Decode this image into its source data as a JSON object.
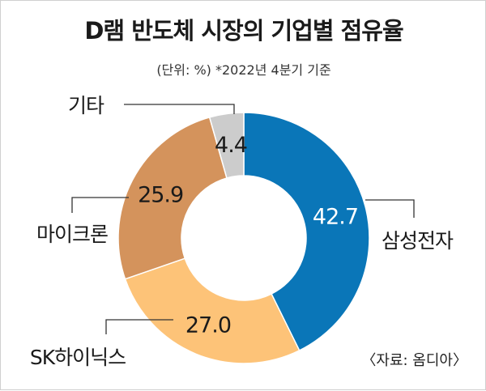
{
  "title": "D램 반도체 시장의 기업별 점유율",
  "subtitle": "(단위: %)  *2022년 4분기 기준",
  "source": "〈자료: 옴디아〉",
  "chart_data": {
    "type": "pie",
    "donut": true,
    "unit": "%",
    "categories": [
      "삼성전자",
      "SK하이닉스",
      "마이크론",
      "기타"
    ],
    "values": [
      42.7,
      27.0,
      25.9,
      4.4
    ],
    "value_labels": [
      "42.7",
      "27.0",
      "25.9",
      "4.4"
    ],
    "colors": [
      "#0a76b8",
      "#fdc378",
      "#d4935c",
      "#cccccc"
    ],
    "start_angle_deg": 0,
    "direction": "clockwise"
  }
}
